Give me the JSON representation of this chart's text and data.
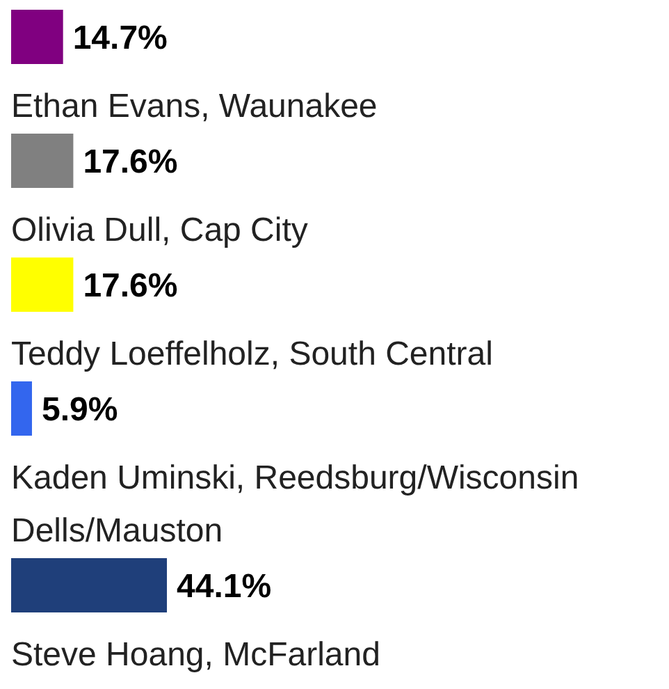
{
  "chart_data": {
    "type": "bar",
    "orientation": "horizontal",
    "categories": [
      null,
      "Ethan Evans, Waunakee",
      "Olivia Dull, Cap City",
      "Teddy Loeffelholz, South Central",
      "Kaden Uminski, Reedsburg/Wisconsin Dells/Mauston",
      "Steve Hoang, McFarland"
    ],
    "values": [
      14.7,
      17.6,
      17.6,
      5.9,
      44.1,
      null
    ],
    "colors": [
      "#800080",
      "#808080",
      "#ffff00",
      "#3366ee",
      "#1f3f7a",
      null
    ],
    "value_labels": [
      "14.7%",
      "17.6%",
      "17.6%",
      "5.9%",
      "44.1%",
      null
    ]
  }
}
